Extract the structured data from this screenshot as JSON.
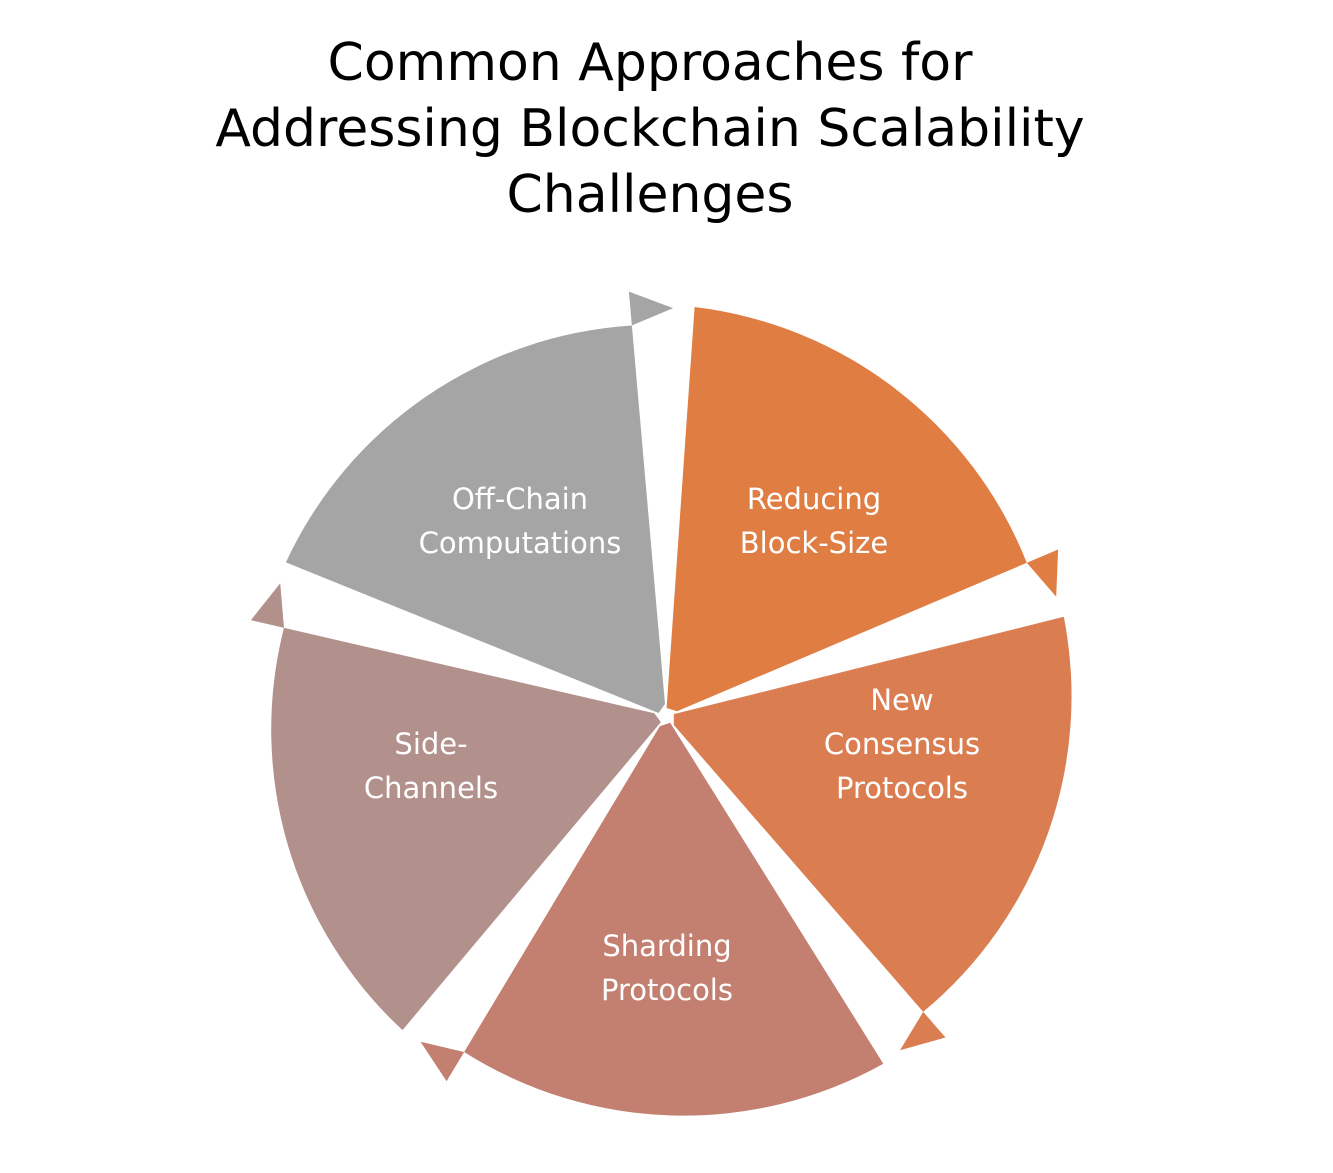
{
  "title_lines": [
    "Common Approaches for",
    "Addressing Blockchain Scalability",
    "Challenges"
  ],
  "segments": [
    {
      "label_lines": [
        "Reducing",
        "Block-Size"
      ],
      "color": "#E07D42"
    },
    {
      "label_lines": [
        "New",
        "Consensus",
        "Protocols"
      ],
      "color": "#DA7E52"
    },
    {
      "label_lines": [
        "Sharding",
        "Protocols"
      ],
      "color": "#C38071"
    },
    {
      "label_lines": [
        "Side-",
        "Channels"
      ],
      "color": "#B2908B"
    },
    {
      "label_lines": [
        "Off-Chain",
        "Computations"
      ],
      "color": "#A5A5A5"
    }
  ]
}
